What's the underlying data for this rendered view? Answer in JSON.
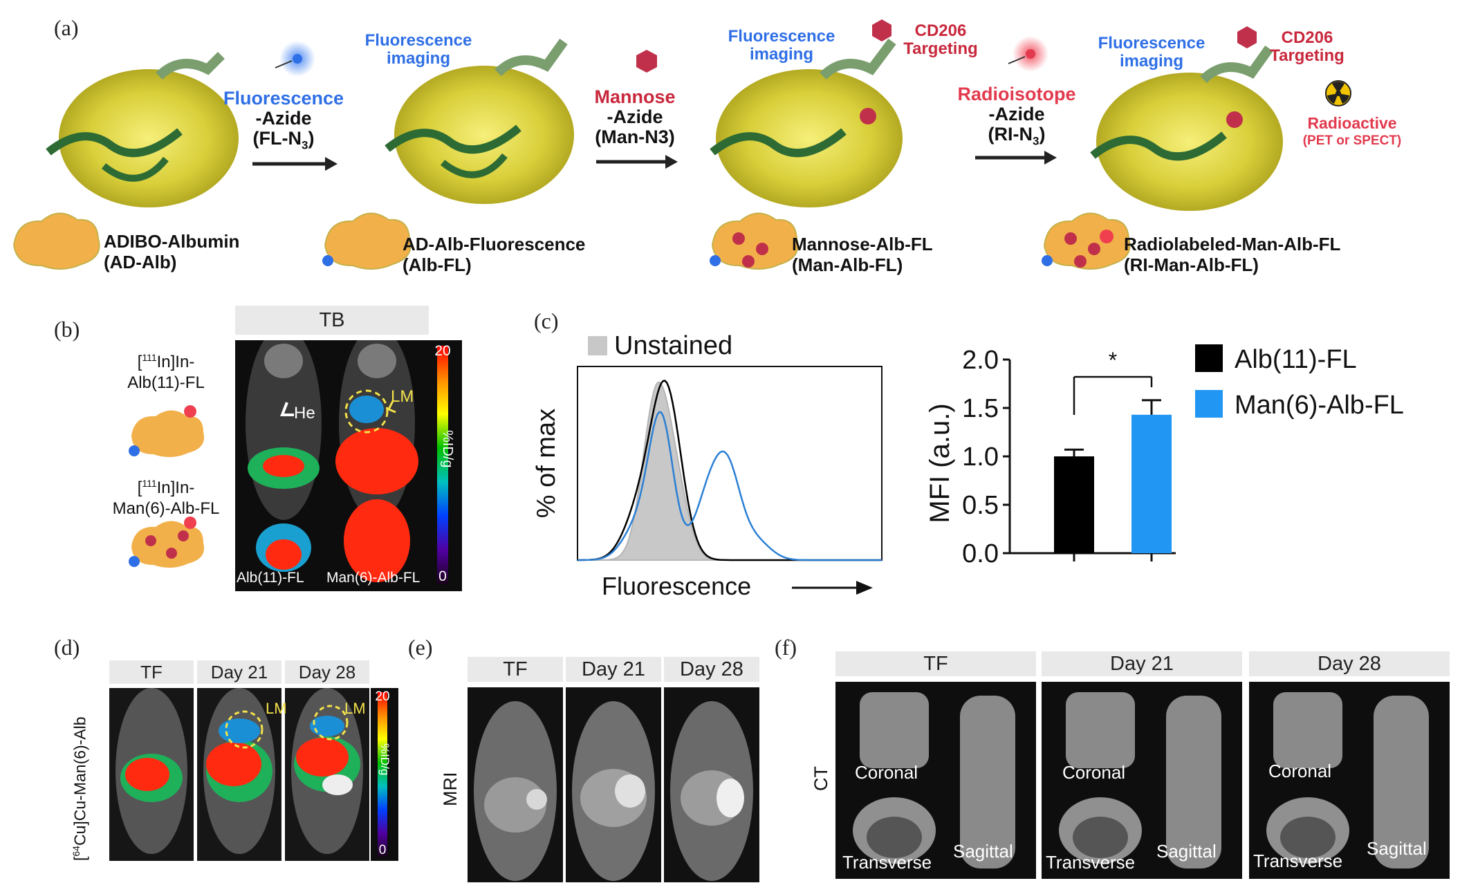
{
  "panels": {
    "a": "(a)",
    "b": "(b)",
    "c": "(c)",
    "d": "(d)",
    "e": "(e)",
    "f": "(f)"
  },
  "panel_a": {
    "step1": {
      "line1": "Fluorescence",
      "line2": "-Azide",
      "line3": "(FL-N",
      "sub": "3",
      "end": ")"
    },
    "step2": {
      "line1": "Mannose",
      "line2": "-Azide",
      "line3": "(Man-N3)"
    },
    "step3": {
      "line1": "Radioisotope",
      "line2": "-Azide",
      "line3": "(RI-N",
      "sub": "3",
      "end": ")"
    },
    "fluor_label_1": "Fluorescence",
    "fluor_label_2": "imaging",
    "cd206_1": "CD206",
    "cd206_2": "Targeting",
    "radioactive": "Radioactive",
    "pet_spect": "(PET or SPECT)",
    "products": [
      {
        "name": "ADIBO-Albumin",
        "abbr": "(AD-Alb)"
      },
      {
        "name": "AD-Alb-Fluorescence",
        "abbr": "(Alb-FL)"
      },
      {
        "name": "Mannose-Alb-FL",
        "abbr": "(Man-Alb-FL)"
      },
      {
        "name": "Radiolabeled-Man-Alb-FL",
        "abbr": "(RI-Man-Alb-FL)"
      }
    ]
  },
  "panel_b": {
    "header": "TB",
    "probe1_a": "[",
    "probe1_iso": "111",
    "probe1_b": "In]In-",
    "probe1_c": "Alb(11)-FL",
    "probe2_a": "[",
    "probe2_iso": "111",
    "probe2_b": "In]In-",
    "probe2_c": "Man(6)-Alb-FL",
    "img1_label": "Alb(11)-FL",
    "img2_label": "Man(6)-Alb-FL",
    "he": "He",
    "lm": "LM",
    "scale_max": "20",
    "scale_min": "0",
    "scale_unit": "%ID/g"
  },
  "chart_data": [
    {
      "type": "line",
      "title": "",
      "xlabel": "Fluorescence",
      "ylabel": "% of max",
      "legend": [
        "Unstained"
      ],
      "series": [
        {
          "name": "Unstained",
          "color": "#c8c8c8",
          "filled": true
        },
        {
          "name": "Alb(11)-FL",
          "color": "#000000"
        },
        {
          "name": "Man(6)-Alb-FL",
          "color": "#2b7fd4"
        }
      ]
    },
    {
      "type": "bar",
      "categories": [
        "Alb(11)-FL",
        "Man(6)-Alb-FL"
      ],
      "values": [
        1.0,
        1.43
      ],
      "errors": [
        0.07,
        0.15
      ],
      "colors": [
        "#000000",
        "#2196f3"
      ],
      "ylabel": "MFI (a.u.)",
      "ylim": [
        0.0,
        2.0
      ],
      "yticks": [
        "0.0",
        "0.5",
        "1.0",
        "1.5",
        "2.0"
      ],
      "significance": "*",
      "legend": [
        "Alb(11)-FL",
        "Man(6)-Alb-FL"
      ]
    }
  ],
  "panel_d": {
    "headers": [
      "TF",
      "Day 21",
      "Day 28"
    ],
    "ylabel_a": "[",
    "ylabel_iso": "64",
    "ylabel_b": "Cu]Cu-Man(6)-Alb",
    "lm": "LM",
    "scale_max": "20",
    "scale_min": "0",
    "scale_unit": "%ID/g"
  },
  "panel_e": {
    "headers": [
      "TF",
      "Day 21",
      "Day 28"
    ],
    "ylabel": "MRI"
  },
  "panel_f": {
    "headers": [
      "TF",
      "Day 21",
      "Day 28"
    ],
    "ylabel": "CT",
    "coronal": "Coronal",
    "transverse": "Transverse",
    "sagittal": "Sagittal"
  }
}
